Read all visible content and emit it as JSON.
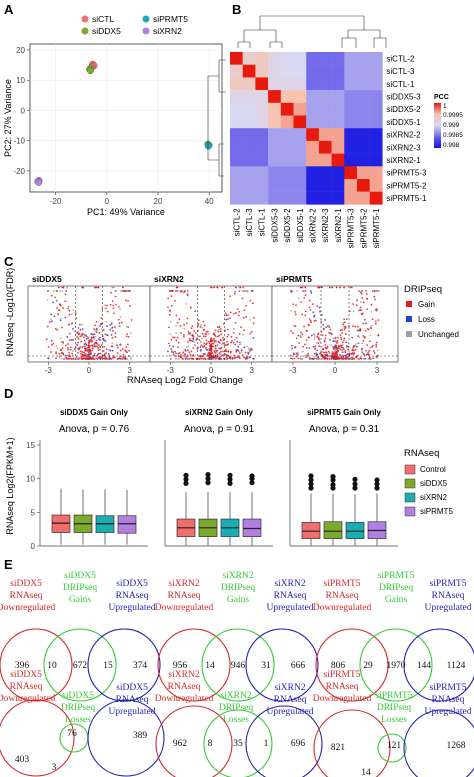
{
  "panels": {
    "A": "A",
    "B": "B",
    "C": "C",
    "D": "D",
    "E": "E"
  },
  "pca": {
    "legend": [
      {
        "label": "siCTL",
        "color": "#f26d6d"
      },
      {
        "label": "siPRMT5",
        "color": "#1aaeb0"
      },
      {
        "label": "siDDX5",
        "color": "#7caa2d"
      },
      {
        "label": "siXRN2",
        "color": "#b07fe0"
      }
    ],
    "xlabel": "PC1: 49% Variance",
    "ylabel": "PC2: 27% Variance",
    "xticks": [
      "-20",
      "0",
      "20",
      "40"
    ],
    "yticks": [
      "20",
      "10",
      "0",
      "-10",
      "-20"
    ],
    "points": [
      {
        "x": -5.5,
        "y": 15.3,
        "group": 0
      },
      {
        "x": -5.0,
        "y": 14.8,
        "group": 0
      },
      {
        "x": -5.8,
        "y": 14.4,
        "group": 0
      },
      {
        "x": -6.3,
        "y": 14.0,
        "group": 2
      },
      {
        "x": -6.7,
        "y": 13.6,
        "group": 2
      },
      {
        "x": -6.4,
        "y": 13.2,
        "group": 2
      },
      {
        "x": 39.5,
        "y": -11.2,
        "group": 1
      },
      {
        "x": 39.9,
        "y": -11.5,
        "group": 1
      },
      {
        "x": 39.7,
        "y": -11.8,
        "group": 1
      },
      {
        "x": -26.5,
        "y": -23.2,
        "group": 3
      },
      {
        "x": -26.9,
        "y": -23.5,
        "group": 3
      },
      {
        "x": -26.6,
        "y": -23.8,
        "group": 3
      }
    ]
  },
  "heatmap": {
    "labels": [
      "siCTL-2",
      "siCTL-3",
      "siCTL-1",
      "siDDX5-3",
      "siDDX5-2",
      "siDDX5-1",
      "siXRN2-2",
      "siXRN2-3",
      "siXRN2-1",
      "siPRMT5-3",
      "siPRMT5-2",
      "siPRMT5-1"
    ],
    "col_labels": [
      "siCTL-2",
      "siCTL-3",
      "siCTL-1",
      "siDDX5-3",
      "siDDX5-2",
      "siDDX5-1",
      "siXRN2-2",
      "siXRN2-3",
      "siXRN2-1",
      "siPRMT5-3",
      "siPRMT5-2",
      "siPRMT5-1"
    ],
    "legend_title": "PCC",
    "legend_ticks": [
      "1",
      "0.9995",
      "0.999",
      "0.9985",
      "0.998"
    ],
    "values": [
      [
        1,
        0.9993,
        0.9994,
        0.9991,
        0.999,
        0.999,
        0.9986,
        0.9986,
        0.9986,
        0.9988,
        0.9988,
        0.9988
      ],
      [
        0.9993,
        1,
        0.9994,
        0.9991,
        0.999,
        0.999,
        0.9986,
        0.9986,
        0.9986,
        0.9988,
        0.9988,
        0.9988
      ],
      [
        0.9994,
        0.9994,
        1,
        0.9991,
        0.9991,
        0.9991,
        0.9986,
        0.9986,
        0.9986,
        0.9988,
        0.9988,
        0.9988
      ],
      [
        0.9991,
        0.9991,
        0.9991,
        1,
        0.9995,
        0.9995,
        0.9988,
        0.9988,
        0.9988,
        0.9987,
        0.9987,
        0.9987
      ],
      [
        0.999,
        0.999,
        0.9991,
        0.9995,
        1,
        0.9996,
        0.9988,
        0.9988,
        0.9988,
        0.9987,
        0.9987,
        0.9987
      ],
      [
        0.999,
        0.999,
        0.9991,
        0.9995,
        0.9996,
        1,
        0.9988,
        0.9988,
        0.9988,
        0.9987,
        0.9987,
        0.9987
      ],
      [
        0.9986,
        0.9986,
        0.9986,
        0.9988,
        0.9988,
        0.9988,
        1,
        0.9996,
        0.9996,
        0.9981,
        0.9981,
        0.9981
      ],
      [
        0.9986,
        0.9986,
        0.9986,
        0.9988,
        0.9988,
        0.9988,
        0.9996,
        1,
        0.9996,
        0.9981,
        0.9981,
        0.9981
      ],
      [
        0.9986,
        0.9986,
        0.9986,
        0.9988,
        0.9988,
        0.9988,
        0.9996,
        0.9996,
        1,
        0.9981,
        0.9981,
        0.9981
      ],
      [
        0.9988,
        0.9988,
        0.9988,
        0.9987,
        0.9987,
        0.9987,
        0.9981,
        0.9981,
        0.9981,
        1,
        0.9996,
        0.9996
      ],
      [
        0.9988,
        0.9988,
        0.9988,
        0.9987,
        0.9987,
        0.9987,
        0.9981,
        0.9981,
        0.9981,
        0.9996,
        1,
        0.9996
      ],
      [
        0.9988,
        0.9988,
        0.9988,
        0.9987,
        0.9987,
        0.9987,
        0.9981,
        0.9981,
        0.9981,
        0.9996,
        0.9996,
        1
      ]
    ]
  },
  "volcano": {
    "titles": [
      "siDDX5",
      "siXRN2",
      "siPRMT5"
    ],
    "xlabel": "RNAseq Log2 Fold Change",
    "ylabel": "RNAseq -Log10(FDR)",
    "xticks": [
      "-3",
      "0",
      "3"
    ],
    "legend_title": "DRIPseq",
    "legend": [
      {
        "label": "Gain",
        "color": "#e41a1c"
      },
      {
        "label": "Loss",
        "color": "#1f3fd6"
      },
      {
        "label": "Unchanged",
        "color": "#a0a0a0"
      }
    ]
  },
  "boxplots": {
    "titles": [
      "siDDX5 Gain Only",
      "siXRN2 Gain Only",
      "siPRMT5 Gain Only"
    ],
    "anova": [
      "Anova, p = 0.76",
      "Anova, p = 0.91",
      "Anova, p = 0.31"
    ],
    "ylabel": "RNAseq Log2(FPKM+1)",
    "yticks": [
      "0",
      "5",
      "10",
      "15"
    ],
    "legend_title": "RNAseq",
    "legend": [
      {
        "label": "Control",
        "color": "#f26d6d"
      },
      {
        "label": "siDDX5",
        "color": "#7caa2d"
      },
      {
        "label": "siXRN2",
        "color": "#1aaeb0"
      },
      {
        "label": "siPRMT5",
        "color": "#b07fe0"
      }
    ],
    "groups": [
      [
        {
          "min": 0.2,
          "q1": 2.0,
          "median": 3.4,
          "q3": 4.6,
          "max": 8.5
        },
        {
          "min": 0.2,
          "q1": 2.0,
          "median": 3.3,
          "q3": 4.6,
          "max": 8.4
        },
        {
          "min": 0.2,
          "q1": 2.0,
          "median": 3.3,
          "q3": 4.5,
          "max": 8.4
        },
        {
          "min": 0.2,
          "q1": 1.9,
          "median": 3.3,
          "q3": 4.5,
          "max": 8.3
        }
      ],
      [
        {
          "min": 0.1,
          "q1": 1.4,
          "median": 2.7,
          "q3": 4.0,
          "max": 8.0,
          "outliers": [
            9.3,
            9.9,
            10.5
          ]
        },
        {
          "min": 0.1,
          "q1": 1.4,
          "median": 2.7,
          "q3": 4.0,
          "max": 8.0,
          "outliers": [
            9.4,
            10.0,
            10.6
          ]
        },
        {
          "min": 0.1,
          "q1": 1.4,
          "median": 2.7,
          "q3": 4.0,
          "max": 8.0,
          "outliers": [
            9.3,
            9.9,
            10.5
          ]
        },
        {
          "min": 0.1,
          "q1": 1.4,
          "median": 2.6,
          "q3": 4.0,
          "max": 8.0,
          "outliers": [
            9.4,
            10.0,
            10.4
          ]
        }
      ],
      [
        {
          "min": 0.1,
          "q1": 1.1,
          "median": 2.2,
          "q3": 3.5,
          "max": 7.8,
          "outliers": [
            8.6,
            9.2,
            9.8,
            10.4
          ]
        },
        {
          "min": 0.1,
          "q1": 1.1,
          "median": 2.2,
          "q3": 3.6,
          "max": 7.8,
          "outliers": [
            8.6,
            9.1,
            9.8,
            10.3
          ]
        },
        {
          "min": 0.1,
          "q1": 1.1,
          "median": 2.2,
          "q3": 3.5,
          "max": 7.7,
          "outliers": [
            8.6,
            9.2,
            9.9
          ]
        },
        {
          "min": 0.1,
          "q1": 1.1,
          "median": 2.3,
          "q3": 3.6,
          "max": 7.8,
          "outliers": [
            8.6,
            9.2,
            9.8
          ]
        }
      ]
    ]
  },
  "venn": {
    "gains": [
      {
        "left": [
          "siDDX5",
          "RNAseq",
          "Downregulated"
        ],
        "mid": [
          "siDDX5",
          "DRIPseq",
          "Gains"
        ],
        "right": [
          "siDDX5",
          "RNAseq",
          "Upregulated"
        ],
        "n": [
          "396",
          "10",
          "672",
          "15",
          "374"
        ]
      },
      {
        "left": [
          "siXRN2",
          "RNAseq",
          "Downregulated"
        ],
        "mid": [
          "siXRN2",
          "DRIPseq",
          "Gains"
        ],
        "right": [
          "siXRN2",
          "RNAseq",
          "Upregulated"
        ],
        "n": [
          "956",
          "14",
          "946",
          "31",
          "666"
        ]
      },
      {
        "left": [
          "siPRMT5",
          "RNAseq",
          "Downregulated"
        ],
        "mid": [
          "siPRMT5",
          "DRIPseq",
          "Gains"
        ],
        "right": [
          "siPRMT5",
          "RNAseq",
          "Upregulated"
        ],
        "n": [
          "806",
          "29",
          "1970",
          "144",
          "1124"
        ]
      }
    ],
    "losses": [
      {
        "left": [
          "siDDX5",
          "RNAseq",
          "Downregulated"
        ],
        "mid": [
          "siDDX5",
          "DRIPseq",
          "Losses"
        ],
        "right": [
          "siDDX5",
          "RNAseq",
          "Upregulated"
        ],
        "n": [
          "403",
          "3",
          "76",
          "389"
        ]
      },
      {
        "left": [
          "siXRN2",
          "RNAseq",
          "Downregulated"
        ],
        "mid": [
          "siXRN2",
          "DRIPseq",
          "Losses"
        ],
        "right": [
          "siXRN2",
          "RNAseq",
          "Upregulated"
        ],
        "n": [
          "962",
          "8",
          "35",
          "1",
          "696"
        ]
      },
      {
        "left": [
          "siPRMT5",
          "RNAseq",
          "Downregulated"
        ],
        "mid": [
          "siPRMT5",
          "DRIPseq",
          "Losses"
        ],
        "right": [
          "siPRMT5",
          "RNAseq",
          "Upregulated"
        ],
        "n": [
          "821",
          "14",
          "121",
          "1268"
        ]
      }
    ]
  }
}
